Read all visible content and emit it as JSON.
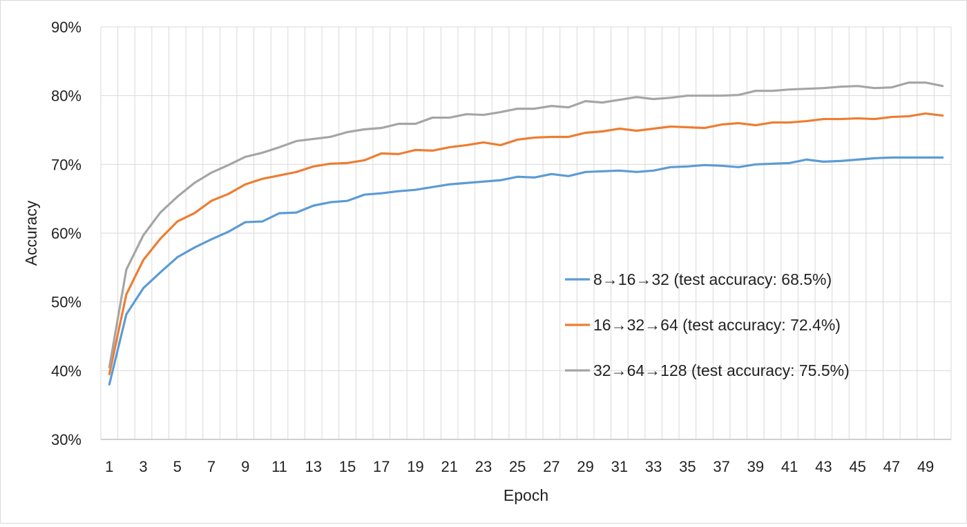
{
  "chart_data": {
    "type": "line",
    "title": "",
    "xlabel": "Epoch",
    "ylabel": "Accuracy",
    "ylim": [
      0.3,
      0.9
    ],
    "y_ticks": [
      "30%",
      "40%",
      "50%",
      "60%",
      "70%",
      "80%",
      "90%"
    ],
    "y_tick_values": [
      0.3,
      0.4,
      0.5,
      0.6,
      0.7,
      0.8,
      0.9
    ],
    "x": [
      1,
      2,
      3,
      4,
      5,
      6,
      7,
      8,
      9,
      10,
      11,
      12,
      13,
      14,
      15,
      16,
      17,
      18,
      19,
      20,
      21,
      22,
      23,
      24,
      25,
      26,
      27,
      28,
      29,
      30,
      31,
      32,
      33,
      34,
      35,
      36,
      37,
      38,
      39,
      40,
      41,
      42,
      43,
      44,
      45,
      46,
      47,
      48,
      49,
      50
    ],
    "x_tick_labels": [
      "1",
      "3",
      "5",
      "7",
      "9",
      "11",
      "13",
      "15",
      "17",
      "19",
      "21",
      "23",
      "25",
      "27",
      "29",
      "31",
      "33",
      "35",
      "37",
      "39",
      "41",
      "43",
      "45",
      "47",
      "49"
    ],
    "grid": true,
    "legend_position": "center-right",
    "series": [
      {
        "name": "8→16→32 (test accuracy: 68.5%)",
        "color": "#5B9BD5",
        "values": [
          0.38,
          0.482,
          0.52,
          0.543,
          0.565,
          0.579,
          0.591,
          0.602,
          0.616,
          0.617,
          0.629,
          0.63,
          0.64,
          0.645,
          0.647,
          0.656,
          0.658,
          0.661,
          0.663,
          0.667,
          0.671,
          0.673,
          0.675,
          0.677,
          0.682,
          0.681,
          0.686,
          0.683,
          0.689,
          0.69,
          0.691,
          0.689,
          0.691,
          0.696,
          0.697,
          0.699,
          0.698,
          0.696,
          0.7,
          0.701,
          0.702,
          0.707,
          0.704,
          0.705,
          0.707,
          0.709,
          0.71,
          0.71,
          0.71,
          0.71
        ]
      },
      {
        "name": "16→32→64 (test accuracy: 72.4%)",
        "color": "#ED7D31",
        "values": [
          0.395,
          0.511,
          0.561,
          0.592,
          0.617,
          0.629,
          0.647,
          0.657,
          0.671,
          0.679,
          0.684,
          0.689,
          0.697,
          0.701,
          0.702,
          0.706,
          0.716,
          0.715,
          0.721,
          0.72,
          0.725,
          0.728,
          0.732,
          0.728,
          0.736,
          0.739,
          0.74,
          0.74,
          0.746,
          0.748,
          0.752,
          0.749,
          0.752,
          0.755,
          0.754,
          0.753,
          0.758,
          0.76,
          0.757,
          0.761,
          0.761,
          0.763,
          0.766,
          0.766,
          0.767,
          0.766,
          0.769,
          0.77,
          0.774,
          0.771
        ]
      },
      {
        "name": "32→64→128 (test accuracy: 75.5%)",
        "color": "#A5A5A5",
        "values": [
          0.405,
          0.547,
          0.597,
          0.63,
          0.653,
          0.673,
          0.688,
          0.699,
          0.711,
          0.717,
          0.725,
          0.734,
          0.737,
          0.74,
          0.747,
          0.751,
          0.753,
          0.759,
          0.759,
          0.768,
          0.768,
          0.773,
          0.772,
          0.776,
          0.781,
          0.781,
          0.785,
          0.783,
          0.792,
          0.79,
          0.794,
          0.798,
          0.795,
          0.797,
          0.8,
          0.8,
          0.8,
          0.801,
          0.807,
          0.807,
          0.809,
          0.81,
          0.811,
          0.813,
          0.814,
          0.811,
          0.812,
          0.819,
          0.819,
          0.814
        ]
      }
    ]
  }
}
